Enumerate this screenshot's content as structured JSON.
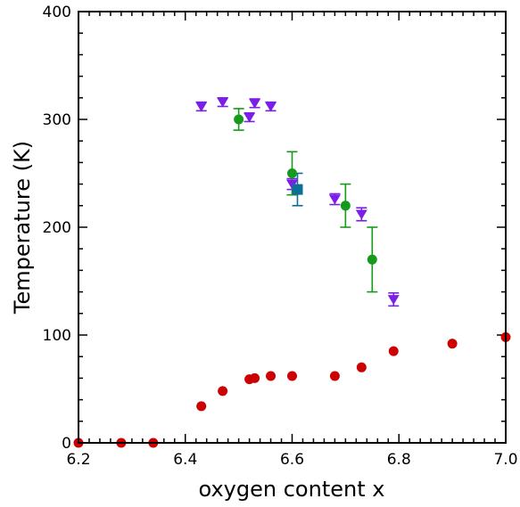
{
  "chart_data": {
    "type": "scatter",
    "title": "",
    "xlabel": "oxygen content x",
    "ylabel": "Temperature (K)",
    "xlim": [
      6.2,
      7.0
    ],
    "ylim": [
      0,
      400
    ],
    "x_ticks": [
      "6.2",
      "6.4",
      "6.6",
      "6.8",
      "7.0"
    ],
    "y_ticks": [
      "0",
      "100",
      "200",
      "300",
      "400"
    ],
    "grid": false,
    "legend": "none",
    "series": [
      {
        "marker": "circle",
        "color": "#cc0000",
        "points": [
          {
            "x": 6.2,
            "y": 0
          },
          {
            "x": 6.28,
            "y": 0
          },
          {
            "x": 6.34,
            "y": 0
          },
          {
            "x": 6.43,
            "y": 34
          },
          {
            "x": 6.47,
            "y": 48
          },
          {
            "x": 6.52,
            "y": 59
          },
          {
            "x": 6.53,
            "y": 60
          },
          {
            "x": 6.56,
            "y": 62
          },
          {
            "x": 6.6,
            "y": 62
          },
          {
            "x": 6.68,
            "y": 62
          },
          {
            "x": 6.73,
            "y": 70
          },
          {
            "x": 6.79,
            "y": 85
          },
          {
            "x": 6.9,
            "y": 92
          },
          {
            "x": 7.0,
            "y": 98
          }
        ]
      },
      {
        "marker": "triangle-down",
        "color": "#7b1fe8",
        "points": [
          {
            "x": 6.43,
            "y": 312,
            "err": 4
          },
          {
            "x": 6.47,
            "y": 316,
            "err": 4
          },
          {
            "x": 6.52,
            "y": 302,
            "err": 4
          },
          {
            "x": 6.53,
            "y": 315,
            "err": 4
          },
          {
            "x": 6.56,
            "y": 312,
            "err": 4
          },
          {
            "x": 6.6,
            "y": 240,
            "err": 5
          },
          {
            "x": 6.68,
            "y": 226,
            "err": 5
          },
          {
            "x": 6.73,
            "y": 212,
            "err": 6
          },
          {
            "x": 6.79,
            "y": 133,
            "err": 6
          }
        ]
      },
      {
        "marker": "circle",
        "color": "#159a1c",
        "points": [
          {
            "x": 6.5,
            "y": 300,
            "err": 10
          },
          {
            "x": 6.6,
            "y": 250,
            "err": 20
          },
          {
            "x": 6.7,
            "y": 220,
            "err": 20
          },
          {
            "x": 6.75,
            "y": 170,
            "err": 30
          }
        ]
      },
      {
        "marker": "square",
        "color": "#0f6e96",
        "points": [
          {
            "x": 6.61,
            "y": 235,
            "err": 15
          }
        ]
      }
    ]
  }
}
